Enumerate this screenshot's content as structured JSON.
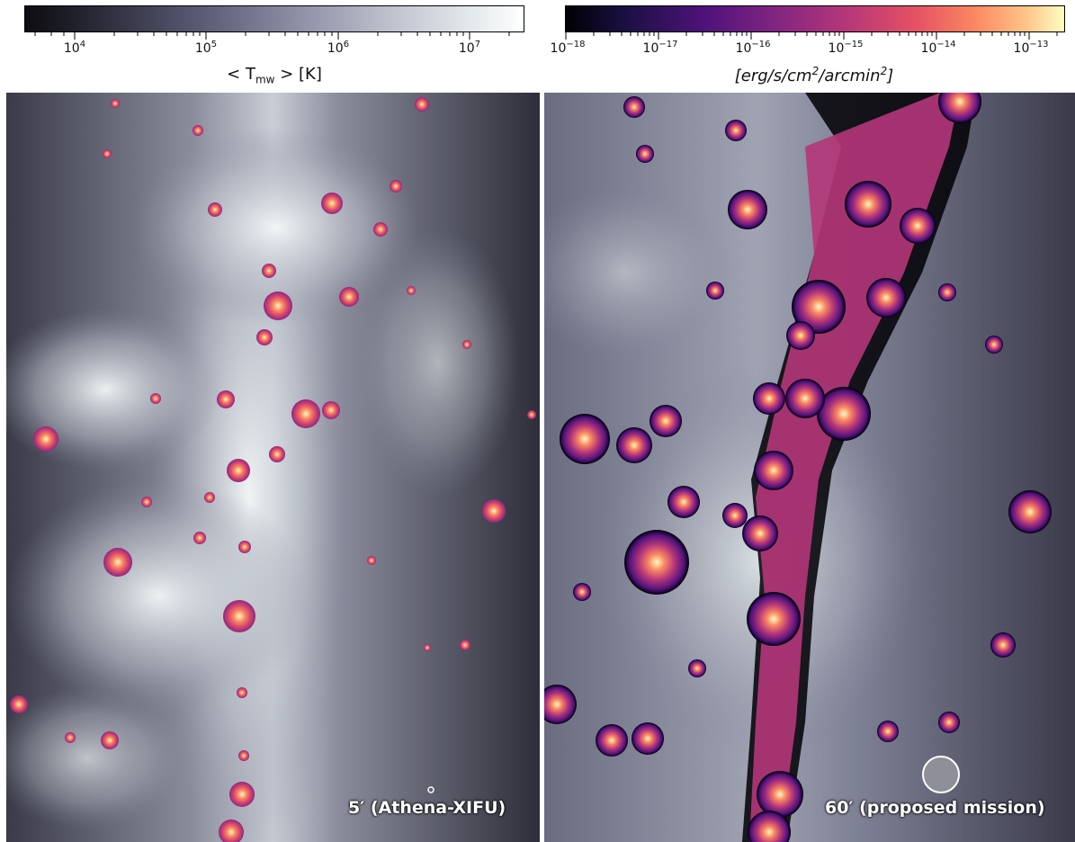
{
  "colorbars": {
    "left": {
      "tick_labels": [
        "10^4",
        "10^5",
        "10^6",
        "10^7"
      ],
      "tick_base": "10",
      "tick_exponents": [
        "4",
        "5",
        "6",
        "7"
      ],
      "title_prefix": "< T",
      "title_sub": "mw",
      "title_suffix": " > [K]"
    },
    "right": {
      "tick_base": "10",
      "tick_exponents": [
        "−18",
        "−17",
        "−16",
        "−15",
        "−14",
        "−13"
      ],
      "title": "[erg/s/cm^2/arcmin^2]",
      "title_parts": [
        "[erg/s/cm",
        "2",
        "/arcmin",
        "2",
        "]"
      ]
    }
  },
  "panels": {
    "left": {
      "beam_label": "5′ (Athena-XIFU)"
    },
    "right": {
      "beam_label": "60′ (proposed mission)"
    }
  }
}
